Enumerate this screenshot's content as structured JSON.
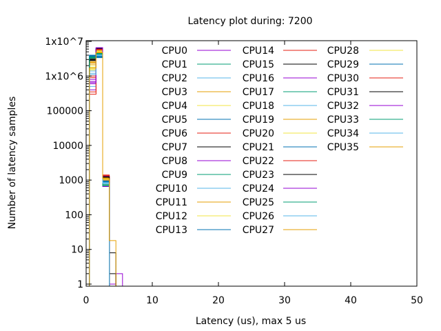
{
  "chart_data": {
    "type": "line",
    "style": "histogram-steps",
    "title": "Latency plot during: 7200",
    "xlabel": "Latency (us), max 5 us",
    "ylabel": "Number of latency samples",
    "xlim": [
      0,
      50
    ],
    "ylim": [
      1,
      10000000
    ],
    "yscale": "log",
    "grid": false,
    "legend_placement": "top-right",
    "x_ticks": [
      "0",
      "10",
      "20",
      "30",
      "40",
      "50"
    ],
    "y_ticks": [
      "1",
      "10",
      "100",
      "1000",
      "10000",
      "100000",
      "1x10^6",
      "1x10^7"
    ],
    "x": [
      1,
      2,
      3,
      4,
      5
    ],
    "colors": [
      "#9400d3",
      "#009e73",
      "#56b4e9",
      "#e69f00",
      "#f0e442",
      "#0072b2",
      "#e51e10",
      "#000000"
    ],
    "series": [
      {
        "name": "CPU0",
        "values": [
          600000,
          6500000,
          700,
          1,
          2
        ]
      },
      {
        "name": "CPU1",
        "values": [
          3500000,
          4200000,
          900,
          0,
          0
        ]
      },
      {
        "name": "CPU2",
        "values": [
          3800000,
          4000000,
          800,
          0,
          0
        ]
      },
      {
        "name": "CPU3",
        "values": [
          2600000,
          3600000,
          1000,
          0,
          0
        ]
      },
      {
        "name": "CPU4",
        "values": [
          1500000,
          5000000,
          1100,
          0,
          0
        ]
      },
      {
        "name": "CPU5",
        "values": [
          4000000,
          3400000,
          850,
          0,
          0
        ]
      },
      {
        "name": "CPU6",
        "values": [
          900000,
          5600000,
          1200,
          0,
          0
        ]
      },
      {
        "name": "CPU7",
        "values": [
          3000000,
          6200000,
          1300,
          0,
          0
        ]
      },
      {
        "name": "CPU8",
        "values": [
          400000,
          6400000,
          1000,
          0,
          0
        ]
      },
      {
        "name": "CPU9",
        "values": [
          3600000,
          4600000,
          800,
          0,
          0
        ]
      },
      {
        "name": "CPU10",
        "values": [
          1200000,
          3800000,
          900,
          0,
          0
        ]
      },
      {
        "name": "CPU11",
        "values": [
          2200000,
          4800000,
          1100,
          0,
          0
        ]
      },
      {
        "name": "CPU12",
        "values": [
          2000000,
          5200000,
          1000,
          0,
          0
        ]
      },
      {
        "name": "CPU13",
        "values": [
          3900000,
          3500000,
          950,
          0,
          0
        ]
      },
      {
        "name": "CPU14",
        "values": [
          300000,
          5800000,
          1400,
          0,
          0
        ]
      },
      {
        "name": "CPU15",
        "values": [
          2800000,
          6000000,
          1200,
          2,
          0
        ]
      },
      {
        "name": "CPU16",
        "values": [
          700000,
          6300000,
          1300,
          0,
          0
        ]
      },
      {
        "name": "CPU17",
        "values": [
          3400000,
          4400000,
          750,
          0,
          0
        ]
      },
      {
        "name": "CPU18",
        "values": [
          500000,
          4100000,
          850,
          0,
          0
        ]
      },
      {
        "name": "CPU19",
        "values": [
          2400000,
          5400000,
          1150,
          0,
          0
        ]
      },
      {
        "name": "CPU20",
        "values": [
          1800000,
          5500000,
          1050,
          0,
          0
        ]
      },
      {
        "name": "CPU21",
        "values": [
          3700000,
          3700000,
          900,
          0,
          0
        ]
      },
      {
        "name": "CPU22",
        "values": [
          1000000,
          5700000,
          1250,
          0,
          0
        ]
      },
      {
        "name": "CPU23",
        "values": [
          3200000,
          6100000,
          1100,
          8,
          0
        ]
      },
      {
        "name": "CPU24",
        "values": [
          800000,
          6000000,
          1000,
          0,
          0
        ]
      },
      {
        "name": "CPU25",
        "values": [
          3300000,
          4300000,
          700,
          0,
          0
        ]
      },
      {
        "name": "CPU26",
        "values": [
          1400000,
          3900000,
          800,
          0,
          0
        ]
      },
      {
        "name": "CPU27",
        "values": [
          2500000,
          4900000,
          1000,
          0,
          0
        ]
      },
      {
        "name": "CPU28",
        "values": [
          1600000,
          5100000,
          1050,
          0,
          0
        ]
      },
      {
        "name": "CPU29",
        "values": [
          3800000,
          3600000,
          900,
          0,
          0
        ]
      },
      {
        "name": "CPU30",
        "values": [
          350000,
          5900000,
          1350,
          0,
          0
        ]
      },
      {
        "name": "CPU31",
        "values": [
          2900000,
          6300000,
          1250,
          0,
          0
        ]
      },
      {
        "name": "CPU32",
        "values": [
          650000,
          6600000,
          650,
          0,
          0
        ]
      },
      {
        "name": "CPU33",
        "values": [
          3500000,
          4500000,
          680,
          0,
          0
        ]
      },
      {
        "name": "CPU34",
        "values": [
          1100000,
          4000000,
          820,
          0,
          0
        ]
      },
      {
        "name": "CPU35",
        "values": [
          1700000,
          4700000,
          1100,
          18,
          0
        ]
      }
    ]
  }
}
